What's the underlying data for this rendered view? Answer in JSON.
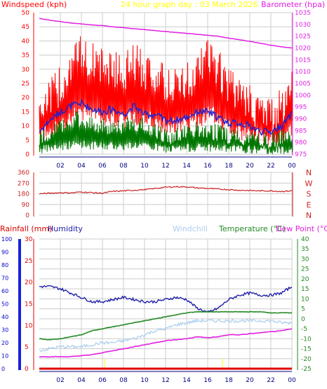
{
  "colors": {
    "windspeed": "#ff0000",
    "windgust": "#ff0000",
    "windavg": "#2222cc",
    "windlow": "#007700",
    "barometer": "#e020e0",
    "direction": "#cc2222",
    "humidity": "#2020aa",
    "windchill": "#aaccee",
    "temperature": "#228822",
    "dewpoint": "#e020e0",
    "rainfall": "#dd0000",
    "date": "#ffff00",
    "grid": "#cccccc"
  },
  "top": {
    "left_label": "Windspeed (kph)",
    "center_label": "24 hour graph day : 03 March 2026",
    "right_label": "Barometer (hpa)"
  },
  "wind_panel": {
    "left_ticks": [
      "50",
      "45",
      "40",
      "35",
      "30",
      "25",
      "20",
      "15",
      "10",
      "5",
      "0"
    ],
    "right_ticks": [
      "1035",
      "1030",
      "1025",
      "1020",
      "1015",
      "1010",
      "1005",
      "1000",
      "995",
      "990",
      "985",
      "980",
      "975"
    ],
    "x_ticks": [
      "02",
      "04",
      "06",
      "08",
      "10",
      "12",
      "14",
      "16",
      "18",
      "20",
      "22",
      "00"
    ]
  },
  "direction_panel": {
    "left_ticks": [
      "360",
      "270",
      "180",
      "90",
      "0"
    ],
    "right_labels": [
      "N",
      "W",
      "S",
      "E",
      "N"
    ],
    "x_ticks": [
      "02",
      "04",
      "06",
      "08",
      "10",
      "12",
      "14",
      "16",
      "18",
      "20",
      "22",
      "00"
    ]
  },
  "bottom": {
    "rainfall_label": "Rainfall (mm)",
    "humidity_label": "Humidity",
    "windchill_label": "Windchill",
    "temperature_label": "Temperature (°C)",
    "dewpoint_label": "Dew Point (°C)",
    "rain_ticks": [
      "100",
      "90",
      "80",
      "70",
      "60",
      "50",
      "40",
      "30",
      "20",
      "10",
      "0"
    ],
    "hum_ticks": [
      "30",
      "25",
      "20",
      "15",
      "10",
      "5",
      "0"
    ],
    "temp_ticks": [
      "40",
      "35",
      "30",
      "25",
      "20",
      "15",
      "10",
      "5",
      "0",
      "-5",
      "-10",
      "-15",
      "-20",
      "-25"
    ],
    "x_ticks": [
      "02",
      "04",
      "06",
      "08",
      "10",
      "12",
      "14",
      "16",
      "18",
      "20",
      "22",
      "00"
    ]
  },
  "chart_data": [
    {
      "type": "line",
      "x_label": "",
      "x_ticks": [
        "02",
        "04",
        "06",
        "08",
        "10",
        "12",
        "14",
        "16",
        "18",
        "20",
        "22",
        "00"
      ],
      "left_axis": {
        "label": "Windspeed (kph)",
        "ylim": [
          0,
          50
        ]
      },
      "right_axis": {
        "label": "Barometer (hpa)",
        "ylim": [
          975,
          1035
        ]
      },
      "series": [
        {
          "name": "",
          "axis": "left",
          "style": "gust-bars",
          "x": [
            0,
            1,
            2,
            3,
            4,
            5,
            6,
            7,
            8,
            9,
            10,
            11,
            12,
            13,
            14,
            15,
            16,
            17,
            18,
            19,
            20,
            21,
            22,
            23,
            24
          ],
          "y": [
            15,
            18,
            22,
            30,
            33,
            31,
            29,
            28,
            27,
            30,
            28,
            26,
            22,
            22,
            24,
            26,
            33,
            28,
            22,
            18,
            16,
            13,
            12,
            14,
            22
          ]
        },
        {
          "name": "",
          "axis": "left",
          "style": "line",
          "x": [
            0,
            1,
            2,
            3,
            4,
            5,
            6,
            7,
            8,
            9,
            10,
            11,
            12,
            13,
            14,
            15,
            16,
            17,
            18,
            19,
            20,
            21,
            22,
            23,
            24
          ],
          "y": [
            8,
            12,
            15,
            17,
            18,
            16,
            15,
            16,
            14,
            17,
            14,
            14,
            12,
            12,
            13,
            15,
            15,
            13,
            11,
            11,
            10,
            8,
            8,
            10,
            14
          ]
        },
        {
          "name": "",
          "axis": "left",
          "style": "low-bars",
          "x": [
            0,
            1,
            2,
            3,
            4,
            5,
            6,
            7,
            8,
            9,
            10,
            11,
            12,
            13,
            14,
            15,
            16,
            17,
            18,
            19,
            20,
            21,
            22,
            23,
            24
          ],
          "y": [
            5,
            7,
            9,
            11,
            12,
            10,
            9,
            10,
            9,
            11,
            9,
            8,
            6,
            6,
            7,
            8,
            8,
            7,
            6,
            6,
            5,
            5,
            4,
            5,
            7
          ]
        },
        {
          "name": "",
          "axis": "right",
          "style": "line",
          "x": [
            0,
            1,
            2,
            3,
            4,
            5,
            6,
            7,
            8,
            9,
            10,
            11,
            12,
            13,
            14,
            15,
            16,
            17,
            18,
            19,
            20,
            21,
            22,
            23,
            24
          ],
          "y": [
            1032.5,
            1031.8,
            1031.2,
            1030.6,
            1030.2,
            1029.8,
            1029.5,
            1029.0,
            1028.6,
            1028.2,
            1027.8,
            1027.4,
            1027.0,
            1026.6,
            1026.2,
            1025.8,
            1025.4,
            1025.0,
            1024.2,
            1023.5,
            1022.8,
            1022.0,
            1021.2,
            1020.5,
            1020.0
          ]
        }
      ]
    },
    {
      "type": "line",
      "x_ticks": [
        "02",
        "04",
        "06",
        "08",
        "10",
        "12",
        "14",
        "16",
        "18",
        "20",
        "22",
        "00"
      ],
      "left_axis": {
        "label": "",
        "ylim": [
          0,
          360
        ]
      },
      "series": [
        {
          "name": "",
          "x": [
            0,
            1,
            2,
            3,
            4,
            5,
            6,
            7,
            8,
            9,
            10,
            11,
            12,
            13,
            14,
            15,
            16,
            17,
            18,
            19,
            20,
            21,
            22,
            23,
            24
          ],
          "y": [
            180,
            185,
            190,
            188,
            195,
            190,
            185,
            200,
            205,
            210,
            215,
            225,
            235,
            240,
            238,
            230,
            225,
            220,
            215,
            210,
            208,
            205,
            205,
            200,
            205
          ]
        }
      ]
    },
    {
      "type": "line",
      "x_ticks": [
        "02",
        "04",
        "06",
        "08",
        "10",
        "12",
        "14",
        "16",
        "18",
        "20",
        "22",
        "00"
      ],
      "axes": {
        "rainfall": {
          "label": "Rainfall (mm)",
          "ylim": [
            0,
            100
          ]
        },
        "humidity": {
          "label": "Humidity",
          "ylim": [
            0,
            30
          ]
        },
        "temperature": {
          "label": "Temperature (°C)",
          "ylim": [
            -25,
            40
          ]
        }
      },
      "series": [
        {
          "name": "Humidity",
          "axis": "humidity",
          "x": [
            0,
            1,
            2,
            3,
            4,
            5,
            6,
            7,
            8,
            9,
            10,
            11,
            12,
            13,
            14,
            15,
            16,
            17,
            18,
            19,
            20,
            21,
            22,
            23,
            24
          ],
          "y": [
            19,
            19,
            18.5,
            17.5,
            16.5,
            15.5,
            15.5,
            16,
            16.5,
            16,
            15.5,
            15.5,
            16,
            16.5,
            16,
            14,
            13,
            14,
            16,
            17,
            17.5,
            17,
            17,
            17.5,
            19
          ]
        },
        {
          "name": "Temperature (°C)",
          "axis": "temperature",
          "x": [
            0,
            1,
            2,
            3,
            4,
            5,
            6,
            7,
            8,
            9,
            10,
            11,
            12,
            13,
            14,
            15,
            16,
            17,
            18,
            19,
            20,
            21,
            22,
            23,
            24
          ],
          "y": [
            -10,
            -10.5,
            -10,
            -9,
            -8,
            -6,
            -5,
            -4,
            -3,
            -2,
            -1,
            0,
            1,
            2,
            3,
            3.5,
            3.5,
            3.5,
            3.5,
            3.5,
            3.5,
            3.5,
            3,
            3,
            3
          ]
        },
        {
          "name": "Windchill",
          "axis": "temperature",
          "x": [
            0,
            1,
            2,
            3,
            4,
            5,
            6,
            7,
            8,
            9,
            10,
            11,
            12,
            13,
            14,
            15,
            16,
            17,
            18,
            19,
            20,
            21,
            22,
            23,
            24
          ],
          "y": [
            -16,
            -15,
            -14,
            -14,
            -14,
            -13,
            -12,
            -12,
            -11,
            -10,
            -8,
            -6,
            -5,
            -3,
            -2,
            -1,
            -1,
            -1,
            -1,
            -1,
            -1,
            -1,
            -1,
            -2,
            -2
          ]
        },
        {
          "name": "Dew Point (°C)",
          "axis": "temperature",
          "x": [
            0,
            1,
            2,
            3,
            4,
            5,
            6,
            7,
            8,
            9,
            10,
            11,
            12,
            13,
            14,
            15,
            16,
            17,
            18,
            19,
            20,
            21,
            22,
            23,
            24
          ],
          "y": [
            -19,
            -19,
            -19,
            -19,
            -18.5,
            -18,
            -17,
            -16,
            -15,
            -14,
            -13,
            -12,
            -11,
            -10.5,
            -10,
            -9,
            -9.5,
            -9,
            -8,
            -8,
            -7.5,
            -7,
            -6.5,
            -6,
            -5
          ]
        },
        {
          "name": "Rainfall (mm)",
          "axis": "rainfall",
          "x": [
            0,
            24
          ],
          "y": [
            0,
            0
          ]
        }
      ]
    }
  ]
}
